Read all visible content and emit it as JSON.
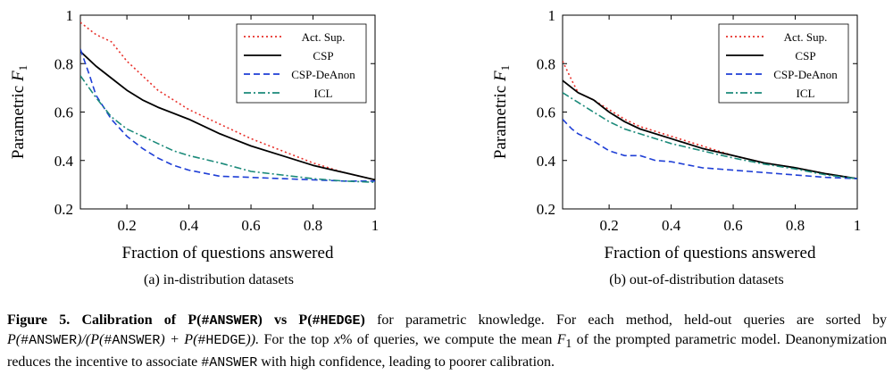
{
  "chart_data": [
    {
      "type": "line",
      "xlabel": "Fraction of questions answered",
      "ylabel_main": "Parametric",
      "ylabel_var": "F",
      "ylabel_sub": "1",
      "xlim": [
        0.05,
        1
      ],
      "ylim": [
        0.2,
        1
      ],
      "xticks": [
        0.2,
        0.4,
        0.6,
        0.8,
        1
      ],
      "xtick_labels": [
        "0.2",
        "0.4",
        "0.6",
        "0.8",
        "1"
      ],
      "yticks": [
        0.2,
        0.4,
        0.6,
        0.8,
        1
      ],
      "ytick_labels": [
        "0.2",
        "0.4",
        "0.6",
        "0.8",
        "1"
      ],
      "legend_position": "top-right",
      "series": [
        {
          "name": "Act. Sup.",
          "color": "#e8302a",
          "dash": "dotted",
          "x": [
            0.05,
            0.1,
            0.15,
            0.2,
            0.25,
            0.3,
            0.35,
            0.4,
            0.5,
            0.6,
            0.7,
            0.8,
            0.9,
            1.0
          ],
          "y": [
            0.97,
            0.92,
            0.89,
            0.81,
            0.75,
            0.69,
            0.65,
            0.61,
            0.55,
            0.49,
            0.44,
            0.39,
            0.35,
            0.32
          ]
        },
        {
          "name": "CSP",
          "color": "#000000",
          "dash": "solid",
          "x": [
            0.05,
            0.1,
            0.15,
            0.2,
            0.25,
            0.3,
            0.4,
            0.5,
            0.6,
            0.7,
            0.8,
            0.9,
            1.0
          ],
          "y": [
            0.85,
            0.79,
            0.74,
            0.69,
            0.65,
            0.62,
            0.57,
            0.51,
            0.46,
            0.42,
            0.38,
            0.35,
            0.32
          ]
        },
        {
          "name": "CSP-DeAnon",
          "color": "#1f3fd6",
          "dash": "dashed",
          "x": [
            0.05,
            0.08,
            0.1,
            0.15,
            0.2,
            0.25,
            0.3,
            0.35,
            0.4,
            0.5,
            0.6,
            0.7,
            0.8,
            0.9,
            1.0
          ],
          "y": [
            0.86,
            0.75,
            0.67,
            0.57,
            0.5,
            0.45,
            0.41,
            0.38,
            0.36,
            0.335,
            0.33,
            0.325,
            0.32,
            0.315,
            0.315
          ]
        },
        {
          "name": "ICL",
          "color": "#1b8a7a",
          "dash": "dashdot",
          "x": [
            0.05,
            0.1,
            0.15,
            0.2,
            0.25,
            0.3,
            0.35,
            0.4,
            0.5,
            0.6,
            0.7,
            0.8,
            0.9,
            1.0
          ],
          "y": [
            0.75,
            0.66,
            0.58,
            0.53,
            0.5,
            0.47,
            0.44,
            0.42,
            0.39,
            0.355,
            0.34,
            0.325,
            0.315,
            0.31
          ]
        }
      ]
    },
    {
      "type": "line",
      "xlabel": "Fraction of questions answered",
      "ylabel_main": "Parametric",
      "ylabel_var": "F",
      "ylabel_sub": "1",
      "xlim": [
        0.05,
        1
      ],
      "ylim": [
        0.2,
        1
      ],
      "xticks": [
        0.2,
        0.4,
        0.6,
        0.8,
        1
      ],
      "xtick_labels": [
        "0.2",
        "0.4",
        "0.6",
        "0.8",
        "1"
      ],
      "yticks": [
        0.2,
        0.4,
        0.6,
        0.8,
        1
      ],
      "ytick_labels": [
        "0.2",
        "0.4",
        "0.6",
        "0.8",
        "1"
      ],
      "legend_position": "top-right",
      "series": [
        {
          "name": "Act. Sup.",
          "color": "#e8302a",
          "dash": "dotted",
          "x": [
            0.05,
            0.08,
            0.1,
            0.15,
            0.2,
            0.25,
            0.3,
            0.4,
            0.5,
            0.6,
            0.7,
            0.8,
            0.9,
            1.0
          ],
          "y": [
            0.81,
            0.73,
            0.68,
            0.65,
            0.61,
            0.57,
            0.54,
            0.5,
            0.46,
            0.42,
            0.39,
            0.37,
            0.345,
            0.325
          ]
        },
        {
          "name": "CSP",
          "color": "#000000",
          "dash": "solid",
          "x": [
            0.05,
            0.1,
            0.15,
            0.2,
            0.25,
            0.3,
            0.4,
            0.5,
            0.6,
            0.7,
            0.8,
            0.9,
            1.0
          ],
          "y": [
            0.73,
            0.68,
            0.65,
            0.6,
            0.56,
            0.53,
            0.49,
            0.45,
            0.42,
            0.39,
            0.37,
            0.345,
            0.325
          ]
        },
        {
          "name": "CSP-DeAnon",
          "color": "#1f3fd6",
          "dash": "dashed",
          "x": [
            0.05,
            0.08,
            0.1,
            0.15,
            0.2,
            0.25,
            0.3,
            0.35,
            0.4,
            0.5,
            0.6,
            0.7,
            0.8,
            0.9,
            1.0
          ],
          "y": [
            0.57,
            0.53,
            0.51,
            0.48,
            0.44,
            0.42,
            0.42,
            0.4,
            0.395,
            0.37,
            0.36,
            0.35,
            0.34,
            0.33,
            0.325
          ]
        },
        {
          "name": "ICL",
          "color": "#1b8a7a",
          "dash": "dashdot",
          "x": [
            0.05,
            0.1,
            0.15,
            0.2,
            0.25,
            0.3,
            0.4,
            0.5,
            0.6,
            0.7,
            0.8,
            0.9,
            1.0
          ],
          "y": [
            0.68,
            0.64,
            0.6,
            0.56,
            0.53,
            0.51,
            0.47,
            0.44,
            0.41,
            0.385,
            0.365,
            0.34,
            0.325
          ]
        }
      ]
    }
  ],
  "subcaptions": [
    "(a) in-distribution datasets",
    "(b) out-of-distribution datasets"
  ],
  "caption": {
    "label": "Figure 5.",
    "title_p1": "Calibration of P(",
    "title_tok1": "#ANSWER",
    "title_p2": ") vs P(",
    "title_tok2": "#HEDGE",
    "title_p3": ")",
    "s1": " for parametric knowledge.  For each method, held-out queries are sorted by ",
    "f1": "P(",
    "t1": "#ANSWER",
    "f2": ")/(P(",
    "t2": "#ANSWER",
    "f3": ") + P(",
    "t3": "#HEDGE",
    "f4": ")).",
    "s2": " For the top ",
    "xvar": "x",
    "s3": "% of queries, we compute the mean ",
    "fvar": "F",
    "fsub": "1",
    "s4": " of the prompted parametric model. Deanonymization reduces the incentive to associate ",
    "t4": "#ANSWER",
    "s5": " with high confidence, leading to poorer calibration."
  }
}
